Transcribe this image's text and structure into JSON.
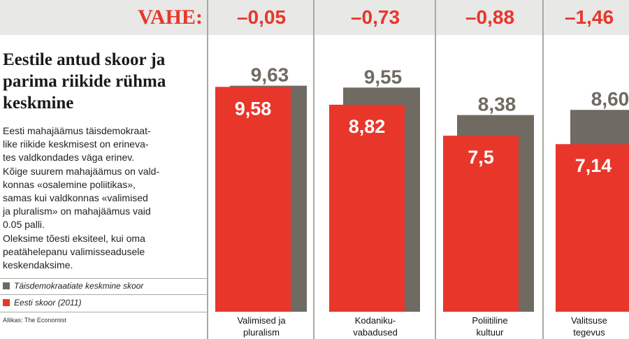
{
  "header": {
    "vahe_label": "VAHE:",
    "differences": [
      "–0,05",
      "–0,73",
      "–0,88",
      "–1,46"
    ]
  },
  "title": "Eestile antud skoor ja parima riikide rühma keskmine",
  "description": "Eesti mahajäämus täisdemokraat-\nlike riikide keskmisest on erineva-\ntes valdkondades väga erinev.\nKõige suurem mahajäämus on vald-\nkonnas «osalemine poliitikas»,\nsamas kui valdkonnas «valimised\nja pluralism» on mahajäämus vaid\n0.05 palli.\nOleksime tõesti eksiteel, kui oma\npeatähelepanu valimisseadusele\nkeskendaksime.",
  "legend": [
    {
      "label": "Täisdemokraatiate keskmine skoor",
      "color": "#6f6b62"
    },
    {
      "label": "Eesti skoor (2011)",
      "color": "#e8362b"
    }
  ],
  "source": "Allikas: The Economist",
  "chart_data": {
    "type": "bar",
    "categories": [
      "Valimised ja\npluralism",
      "Kodaniku-\nvabadused",
      "Poliitiline\nkultuur",
      "Valitsuse\ntegevus"
    ],
    "series": [
      {
        "name": "Täisdemokraatiate keskmine skoor",
        "values": [
          9.63,
          9.55,
          8.38,
          8.6
        ],
        "labels": [
          "9,63",
          "9,55",
          "8,38",
          "8,60"
        ],
        "color": "#6f6b62"
      },
      {
        "name": "Eesti skoor (2011)",
        "values": [
          9.58,
          8.82,
          7.5,
          7.14
        ],
        "labels": [
          "9,58",
          "8,82",
          "7,5",
          "7,14"
        ],
        "color": "#e8362b"
      }
    ],
    "differences": [
      "–0,05",
      "–0,73",
      "–0,88",
      "–1,46"
    ],
    "title": "Eestile antud skoor ja parima riikide rühma keskmine",
    "xlabel": "",
    "ylabel": "",
    "grid": false,
    "legend_position": "bottom-left"
  }
}
